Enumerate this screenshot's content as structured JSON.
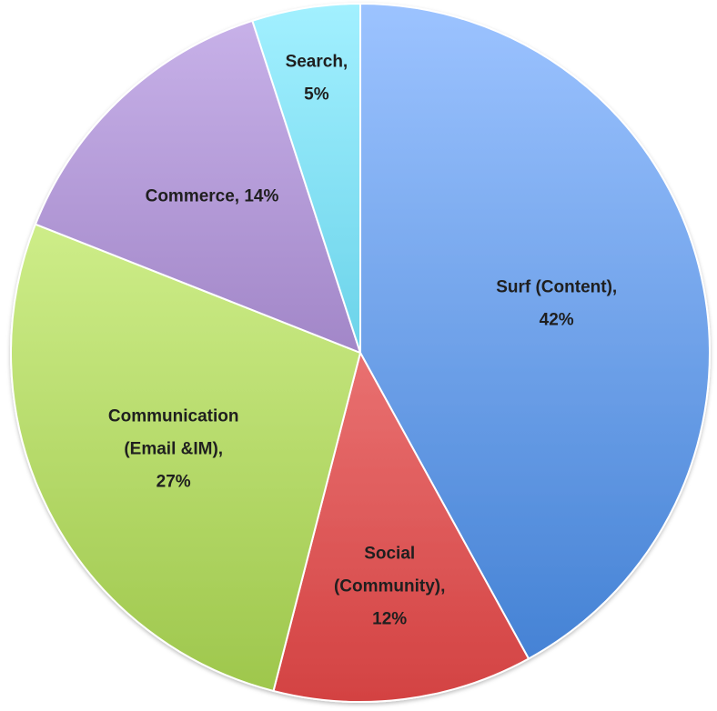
{
  "chart_data": {
    "type": "pie",
    "title": "",
    "slices": [
      {
        "label": "Surf (Content)",
        "value": 42,
        "value_label": "42%",
        "label_lines": [
          "Surf (Content),",
          "42%"
        ],
        "color_light": "#9CC3FF",
        "color_dark": "#3F7ED2"
      },
      {
        "label": "Social (Community)",
        "value": 12,
        "value_label": "12%",
        "label_lines": [
          "Social",
          "(Community),",
          "12%"
        ],
        "color_light": "#FFA0A0",
        "color_dark": "#D34242"
      },
      {
        "label": "Communication (Email &IM)",
        "value": 27,
        "value_label": "27%",
        "label_lines": [
          "Communication",
          "(Email &IM),",
          "27%"
        ],
        "color_light": "#E4FFA5",
        "color_dark": "#9DC64B"
      },
      {
        "label": "Commerce",
        "value": 14,
        "value_label": "14%",
        "label_lines": [
          "Commerce, 14%"
        ],
        "color_light": "#C9B3EA",
        "color_dark": "#7B5AA6"
      },
      {
        "label": "Search",
        "value": 5,
        "value_label": "5%",
        "label_lines": [
          "Search,",
          "5%"
        ],
        "color_light": "#A2F0FF",
        "color_dark": "#34B6D4"
      }
    ]
  }
}
